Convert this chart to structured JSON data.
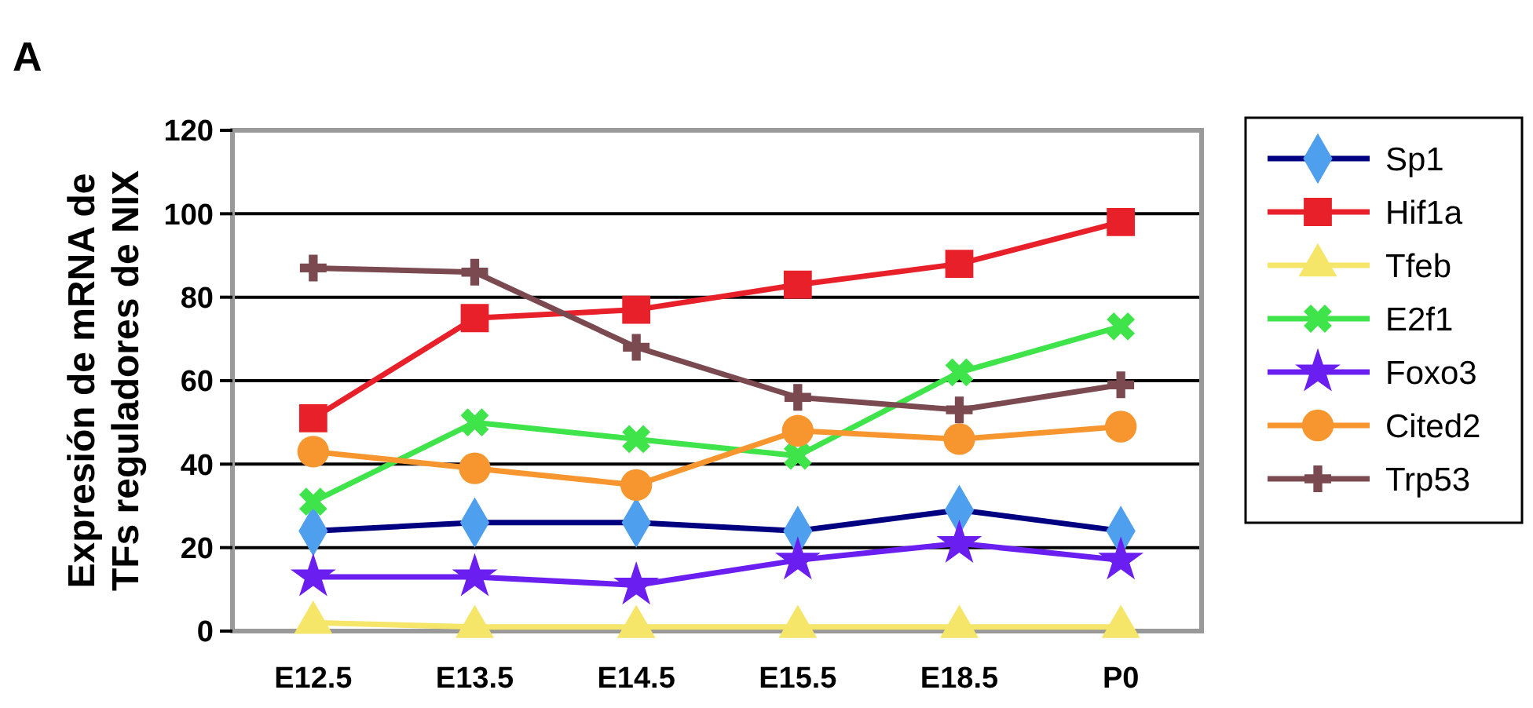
{
  "chart_data": {
    "type": "line",
    "title": "A",
    "ylabel": "Expresión de mRNA de\nTFs reguladores de NIX",
    "categories": [
      "E12.5",
      "E13.5",
      "E14.5",
      "E15.5",
      "E18.5",
      "P0"
    ],
    "ylim": [
      0,
      120
    ],
    "yticks": [
      0,
      20,
      40,
      60,
      80,
      100,
      120
    ],
    "grid": "y",
    "legend": "right",
    "line_style": "solid",
    "series": [
      {
        "name": "Sp1",
        "color": "#000080",
        "marker": "diamond",
        "colors": [
          "#4f9fef",
          "#4f9fef",
          "#4f9fef",
          "#4f9fef",
          "#4f9fef",
          "#4f9fef"
        ],
        "values": [
          24,
          26,
          26,
          24,
          29,
          24
        ]
      },
      {
        "name": "Hif1a",
        "color": "#e8202a",
        "marker": "square",
        "values": [
          51,
          75,
          77,
          83,
          88,
          98
        ]
      },
      {
        "name": "Tfeb",
        "color": "#f5e66a",
        "marker": "triangle",
        "values": [
          2,
          1,
          1,
          1,
          1,
          1
        ]
      },
      {
        "name": "E2f1",
        "color": "#3ee44a",
        "marker": "x",
        "values": [
          31,
          50,
          46,
          42,
          62,
          73
        ]
      },
      {
        "name": "Foxo3",
        "color": "#6a1ef0",
        "marker": "star",
        "values": [
          13,
          13,
          11,
          17,
          21,
          17
        ]
      },
      {
        "name": "Cited2",
        "color": "#f7962e",
        "marker": "circle",
        "values": [
          43,
          39,
          35,
          48,
          46,
          49
        ]
      },
      {
        "name": "Trp53",
        "color": "#7a4a50",
        "marker": "cross",
        "values": [
          87,
          86,
          68,
          56,
          53,
          59
        ]
      }
    ]
  }
}
